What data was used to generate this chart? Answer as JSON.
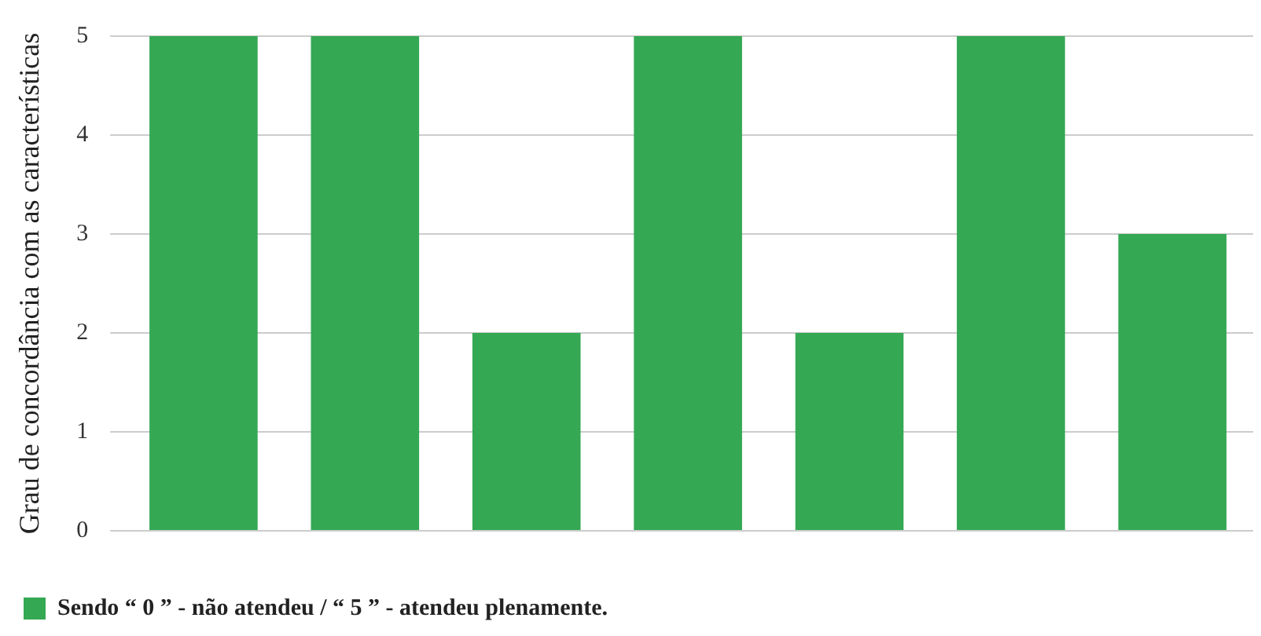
{
  "chart_data": {
    "type": "bar",
    "ylabel": "Grau de concordância com as características",
    "categories": [
      null,
      null,
      null,
      null,
      null,
      null,
      null
    ],
    "series": [
      {
        "name": "Sendo “ 0 ” - não atendeu / “ 5 ” - atendeu plenamente.",
        "color": "#34a853",
        "values": [
          5,
          5,
          2,
          5,
          2,
          5,
          3
        ]
      }
    ],
    "ylim": [
      0,
      5
    ],
    "yticks": [
      0,
      1,
      2,
      3,
      4,
      5
    ],
    "grid": "y",
    "legend": "bottom left"
  }
}
